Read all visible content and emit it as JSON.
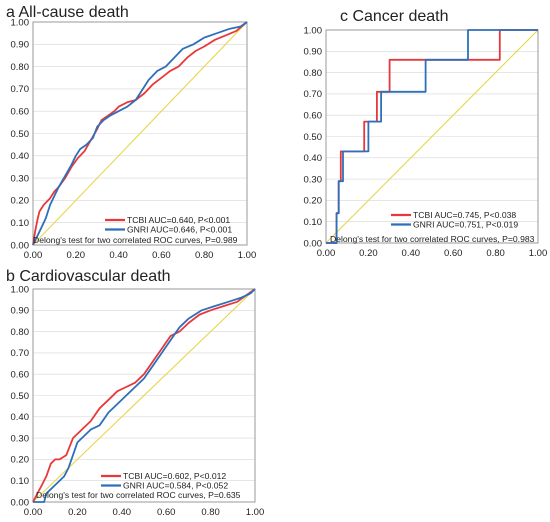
{
  "colors": {
    "tcbi": "#e8383b",
    "gnri": "#2f6fba",
    "diagonal": "#e6d64a",
    "frame": "#9a9a9a",
    "grid": "#d7d7d7"
  },
  "chart_data": [
    {
      "id": "a",
      "type": "line",
      "title": "a All-cause death",
      "xlim": [
        0,
        1
      ],
      "ylim": [
        0,
        1
      ],
      "xticks": [
        "0.00",
        "0.20",
        "0.40",
        "0.60",
        "0.80",
        "1.00"
      ],
      "yticks": [
        "0.00",
        "0.10",
        "0.20",
        "0.30",
        "0.40",
        "0.50",
        "0.60",
        "0.70",
        "0.80",
        "0.90",
        "1.00"
      ],
      "legend": [
        "TCBI  AUC=0.640, P<0.001",
        "GNRI AUC=0.646, P<0.001"
      ],
      "note": "Delong's test for two correlated ROC curves, P=0.989",
      "series": [
        {
          "name": "TCBI",
          "color": "#e8383b",
          "points": [
            [
              0,
              0
            ],
            [
              0.01,
              0.06
            ],
            [
              0.02,
              0.11
            ],
            [
              0.03,
              0.15
            ],
            [
              0.05,
              0.18
            ],
            [
              0.08,
              0.21
            ],
            [
              0.1,
              0.24
            ],
            [
              0.12,
              0.26
            ],
            [
              0.15,
              0.3
            ],
            [
              0.18,
              0.35
            ],
            [
              0.21,
              0.39
            ],
            [
              0.24,
              0.42
            ],
            [
              0.27,
              0.47
            ],
            [
              0.3,
              0.52
            ],
            [
              0.32,
              0.56
            ],
            [
              0.35,
              0.58
            ],
            [
              0.38,
              0.6
            ],
            [
              0.4,
              0.62
            ],
            [
              0.44,
              0.64
            ],
            [
              0.48,
              0.65
            ],
            [
              0.52,
              0.68
            ],
            [
              0.56,
              0.72
            ],
            [
              0.6,
              0.75
            ],
            [
              0.64,
              0.78
            ],
            [
              0.68,
              0.8
            ],
            [
              0.72,
              0.84
            ],
            [
              0.76,
              0.87
            ],
            [
              0.8,
              0.89
            ],
            [
              0.85,
              0.92
            ],
            [
              0.9,
              0.94
            ],
            [
              0.95,
              0.96
            ],
            [
              1,
              1
            ]
          ]
        },
        {
          "name": "GNRI",
          "color": "#2f6fba",
          "points": [
            [
              0,
              0
            ],
            [
              0.02,
              0.04
            ],
            [
              0.04,
              0.08
            ],
            [
              0.06,
              0.12
            ],
            [
              0.08,
              0.18
            ],
            [
              0.1,
              0.22
            ],
            [
              0.12,
              0.26
            ],
            [
              0.15,
              0.31
            ],
            [
              0.18,
              0.36
            ],
            [
              0.2,
              0.4
            ],
            [
              0.22,
              0.43
            ],
            [
              0.25,
              0.45
            ],
            [
              0.28,
              0.48
            ],
            [
              0.3,
              0.53
            ],
            [
              0.33,
              0.56
            ],
            [
              0.36,
              0.58
            ],
            [
              0.4,
              0.6
            ],
            [
              0.44,
              0.62
            ],
            [
              0.48,
              0.65
            ],
            [
              0.5,
              0.68
            ],
            [
              0.54,
              0.74
            ],
            [
              0.58,
              0.78
            ],
            [
              0.62,
              0.8
            ],
            [
              0.66,
              0.84
            ],
            [
              0.7,
              0.88
            ],
            [
              0.75,
              0.9
            ],
            [
              0.8,
              0.93
            ],
            [
              0.86,
              0.95
            ],
            [
              0.92,
              0.97
            ],
            [
              0.97,
              0.98
            ],
            [
              1,
              1
            ]
          ]
        }
      ]
    },
    {
      "id": "c",
      "type": "line",
      "title": "c Cancer death",
      "xlim": [
        0,
        1
      ],
      "ylim": [
        0,
        1
      ],
      "xticks": [
        "0.00",
        "0.20",
        "0.40",
        "0.60",
        "0.80",
        "1.00"
      ],
      "yticks": [
        "0.00",
        "0.10",
        "0.20",
        "0.30",
        "0.40",
        "0.50",
        "0.60",
        "0.70",
        "0.80",
        "0.90",
        "1.00"
      ],
      "legend": [
        "TCBI  AUC=0.745, P<0.038",
        "GNRI AUC=0.751, P<0.019"
      ],
      "note": "Delong's test for two correlated ROC curves, P=0.983",
      "series": [
        {
          "name": "TCBI",
          "color": "#e8383b",
          "points": [
            [
              0,
              0
            ],
            [
              0.05,
              0
            ],
            [
              0.05,
              0.14
            ],
            [
              0.06,
              0.14
            ],
            [
              0.06,
              0.29
            ],
            [
              0.07,
              0.29
            ],
            [
              0.07,
              0.43
            ],
            [
              0.18,
              0.43
            ],
            [
              0.18,
              0.57
            ],
            [
              0.24,
              0.57
            ],
            [
              0.24,
              0.71
            ],
            [
              0.3,
              0.71
            ],
            [
              0.3,
              0.86
            ],
            [
              0.82,
              0.86
            ],
            [
              0.82,
              1
            ],
            [
              1,
              1
            ]
          ]
        },
        {
          "name": "GNRI",
          "color": "#2f6fba",
          "points": [
            [
              0,
              0
            ],
            [
              0.05,
              0
            ],
            [
              0.05,
              0.14
            ],
            [
              0.06,
              0.14
            ],
            [
              0.06,
              0.29
            ],
            [
              0.08,
              0.29
            ],
            [
              0.08,
              0.43
            ],
            [
              0.2,
              0.43
            ],
            [
              0.2,
              0.57
            ],
            [
              0.26,
              0.57
            ],
            [
              0.26,
              0.71
            ],
            [
              0.47,
              0.71
            ],
            [
              0.47,
              0.86
            ],
            [
              0.67,
              0.86
            ],
            [
              0.67,
              1
            ],
            [
              1,
              1
            ]
          ]
        }
      ]
    },
    {
      "id": "b",
      "type": "line",
      "title": "b Cardiovascular death",
      "xlim": [
        0,
        1
      ],
      "ylim": [
        0,
        1
      ],
      "xticks": [
        "0.00",
        "0.20",
        "0.40",
        "0.60",
        "0.80",
        "1.00"
      ],
      "yticks": [
        "0.00",
        "0.10",
        "0.20",
        "0.30",
        "0.40",
        "0.50",
        "0.60",
        "0.70",
        "0.80",
        "0.90",
        "1.00"
      ],
      "legend": [
        "TCBI  AUC=0.602, P<0.012",
        "GNRI AUC=0.584, P<0.052"
      ],
      "note": "Delong's test for two correlated ROC curves, P=0.635",
      "series": [
        {
          "name": "TCBI",
          "color": "#e8383b",
          "points": [
            [
              0,
              0
            ],
            [
              0.02,
              0.04
            ],
            [
              0.04,
              0.08
            ],
            [
              0.06,
              0.12
            ],
            [
              0.08,
              0.18
            ],
            [
              0.1,
              0.2
            ],
            [
              0.12,
              0.2
            ],
            [
              0.15,
              0.22
            ],
            [
              0.18,
              0.3
            ],
            [
              0.22,
              0.34
            ],
            [
              0.26,
              0.38
            ],
            [
              0.3,
              0.44
            ],
            [
              0.34,
              0.48
            ],
            [
              0.38,
              0.52
            ],
            [
              0.42,
              0.54
            ],
            [
              0.46,
              0.56
            ],
            [
              0.5,
              0.6
            ],
            [
              0.54,
              0.66
            ],
            [
              0.58,
              0.72
            ],
            [
              0.62,
              0.78
            ],
            [
              0.66,
              0.8
            ],
            [
              0.7,
              0.84
            ],
            [
              0.75,
              0.88
            ],
            [
              0.8,
              0.9
            ],
            [
              0.86,
              0.92
            ],
            [
              0.92,
              0.94
            ],
            [
              0.96,
              0.97
            ],
            [
              1,
              1
            ]
          ]
        },
        {
          "name": "GNRI",
          "color": "#2f6fba",
          "points": [
            [
              0,
              0
            ],
            [
              0.05,
              0
            ],
            [
              0.06,
              0.04
            ],
            [
              0.08,
              0.06
            ],
            [
              0.1,
              0.08
            ],
            [
              0.14,
              0.12
            ],
            [
              0.16,
              0.16
            ],
            [
              0.18,
              0.22
            ],
            [
              0.2,
              0.28
            ],
            [
              0.23,
              0.31
            ],
            [
              0.26,
              0.34
            ],
            [
              0.3,
              0.36
            ],
            [
              0.34,
              0.42
            ],
            [
              0.38,
              0.46
            ],
            [
              0.42,
              0.5
            ],
            [
              0.46,
              0.54
            ],
            [
              0.5,
              0.58
            ],
            [
              0.54,
              0.64
            ],
            [
              0.58,
              0.7
            ],
            [
              0.62,
              0.76
            ],
            [
              0.66,
              0.82
            ],
            [
              0.7,
              0.86
            ],
            [
              0.76,
              0.9
            ],
            [
              0.82,
              0.92
            ],
            [
              0.88,
              0.94
            ],
            [
              0.94,
              0.96
            ],
            [
              0.98,
              0.98
            ],
            [
              1,
              1
            ]
          ]
        }
      ]
    }
  ]
}
